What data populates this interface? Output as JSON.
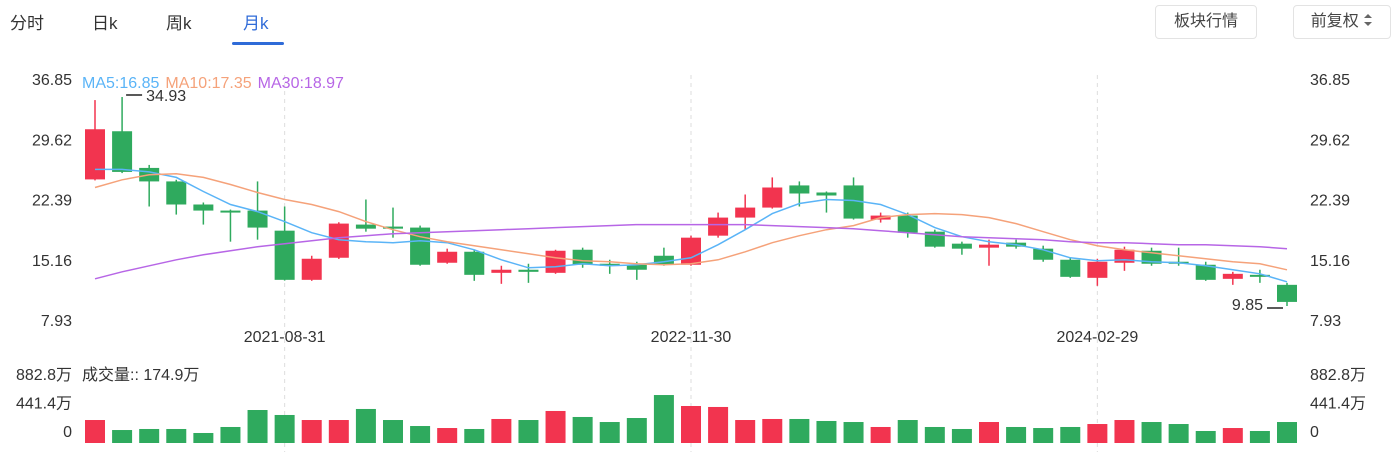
{
  "tabs": [
    "分时",
    "日k",
    "周k",
    "月k"
  ],
  "buttons": [
    "板块行情",
    "前复权"
  ],
  "chart_data": [
    {
      "type": "candlestick",
      "categories": [
        null,
        null,
        null,
        null,
        null,
        null,
        null,
        "2021-08-31",
        null,
        null,
        null,
        null,
        null,
        null,
        null,
        null,
        null,
        null,
        null,
        null,
        null,
        null,
        "2022-11-30",
        null,
        null,
        null,
        null,
        null,
        null,
        null,
        null,
        null,
        null,
        null,
        null,
        null,
        null,
        "2024-02-29",
        null,
        null,
        null,
        null,
        null,
        null,
        null
      ],
      "open": [
        25.04,
        30.82,
        26.42,
        24.8,
        22.03,
        21.3,
        21.3,
        18.89,
        12.99,
        15.64,
        19.62,
        19.38,
        19.26,
        15.04,
        16.36,
        13.83,
        14.2,
        13.83,
        16.6,
        14.92,
        14.8,
        15.88,
        14.8,
        18.29,
        20.46,
        21.66,
        24.32,
        23.47,
        24.32,
        20.22,
        20.7,
        18.77,
        17.33,
        16.85,
        17.45,
        16.73,
        15.4,
        13.23,
        15.04,
        16.48,
        15.16,
        14.8,
        13.11,
        13.59,
        12.39
      ],
      "high": [
        34.56,
        34.93,
        26.78,
        25.0,
        22.27,
        21.42,
        24.8,
        21.79,
        15.88,
        19.9,
        22.63,
        21.66,
        19.5,
        16.73,
        16.6,
        14.68,
        14.92,
        16.6,
        16.85,
        15.4,
        15.16,
        16.85,
        18.29,
        21.06,
        23.23,
        25.28,
        24.8,
        23.59,
        25.28,
        21.06,
        21.06,
        19.01,
        17.57,
        17.81,
        17.81,
        17.09,
        15.64,
        15.52,
        16.97,
        16.85,
        16.85,
        15.16,
        13.95,
        14.2,
        12.63
      ],
      "low": [
        24.92,
        25.8,
        21.79,
        20.82,
        19.62,
        17.57,
        17.81,
        12.9,
        12.87,
        15.5,
        18.77,
        18.05,
        14.68,
        14.92,
        12.87,
        12.51,
        12.63,
        13.71,
        14.44,
        13.71,
        12.99,
        14.68,
        14.68,
        18.05,
        19.01,
        21.54,
        21.79,
        21.06,
        20.22,
        19.86,
        18.05,
        16.85,
        16.0,
        14.68,
        16.73,
        15.16,
        13.23,
        12.27,
        14.07,
        14.68,
        14.68,
        12.87,
        12.39,
        12.63,
        9.85
      ],
      "close": [
        31.06,
        25.94,
        24.8,
        22.03,
        21.3,
        21.06,
        19.26,
        12.99,
        15.52,
        19.74,
        19.13,
        19.13,
        14.8,
        16.36,
        13.59,
        14.2,
        13.95,
        16.48,
        14.8,
        14.68,
        14.2,
        14.8,
        18.05,
        20.46,
        21.66,
        24.07,
        23.35,
        23.11,
        20.34,
        20.7,
        18.65,
        16.97,
        16.73,
        17.21,
        16.97,
        15.4,
        13.35,
        15.16,
        16.6,
        14.92,
        14.92,
        12.99,
        13.71,
        13.35,
        10.34
      ],
      "up_color": "#f2344f",
      "down_color": "#2faa5e",
      "series": [
        {
          "name": "MA5:16.85",
          "color": "#5ab4f7",
          "values": [
            26.24,
            26.24,
            25.94,
            25.28,
            23.59,
            22.03,
            21.18,
            19.98,
            18.65,
            17.81,
            17.57,
            17.45,
            17.69,
            17.45,
            16.6,
            15.4,
            14.44,
            14.56,
            14.92,
            14.68,
            14.8,
            15.16,
            15.64,
            17.21,
            19.01,
            20.94,
            22.15,
            22.63,
            22.51,
            22.03,
            20.82,
            19.26,
            18.17,
            17.57,
            17.21,
            16.6,
            15.64,
            15.28,
            15.4,
            15.16,
            15.04,
            14.68,
            14.2,
            13.71,
            12.75
          ]
        },
        {
          "name": "MA10:17.35",
          "color": "#f5a27a",
          "values": [
            24.07,
            25.0,
            25.59,
            25.71,
            25.28,
            24.43,
            23.47,
            22.63,
            22.03,
            21.18,
            19.98,
            19.01,
            18.17,
            17.57,
            17.09,
            16.6,
            16.12,
            15.64,
            15.28,
            15.16,
            14.92,
            14.8,
            14.92,
            15.4,
            16.36,
            17.45,
            18.29,
            19.01,
            19.5,
            20.46,
            20.82,
            20.94,
            20.82,
            20.46,
            19.74,
            18.77,
            17.81,
            17.09,
            16.6,
            16.24,
            15.88,
            15.52,
            15.16,
            14.92,
            14.2
          ]
        },
        {
          "name": "MA30:18.97",
          "color": "#b766e6",
          "values": [
            13.11,
            13.95,
            14.68,
            15.4,
            16.0,
            16.48,
            16.97,
            17.33,
            17.69,
            18.05,
            18.29,
            18.53,
            18.65,
            18.77,
            18.89,
            19.01,
            19.13,
            19.26,
            19.38,
            19.5,
            19.62,
            19.62,
            19.62,
            19.62,
            19.62,
            19.5,
            19.38,
            19.26,
            19.13,
            18.89,
            18.65,
            18.41,
            18.17,
            18.05,
            17.93,
            17.81,
            17.57,
            17.45,
            17.45,
            17.33,
            17.21,
            17.21,
            17.09,
            16.97,
            16.73
          ]
        }
      ],
      "ylim": [
        7.93,
        36.85
      ],
      "yticks": [
        7.93,
        15.16,
        22.39,
        29.62,
        36.85
      ],
      "grid": "x"
    },
    {
      "type": "bar",
      "title": "成交量:: 174.9万",
      "values": [
        356,
        201,
        217,
        217,
        155,
        248,
        511,
        434,
        356,
        356,
        527,
        356,
        263,
        232,
        217,
        372,
        356,
        496,
        403,
        325,
        387,
        743,
        573,
        558,
        356,
        372,
        372,
        341,
        325,
        248,
        356,
        248,
        217,
        325,
        248,
        232,
        248,
        294,
        356,
        325,
        294,
        186,
        232,
        186,
        325
      ],
      "ylim": [
        0,
        882.8
      ],
      "yticks": [
        0,
        {
          "value": 441.4,
          "label": "441.4万"
        },
        {
          "value": 882.8,
          "label": "882.8万"
        }
      ]
    }
  ]
}
